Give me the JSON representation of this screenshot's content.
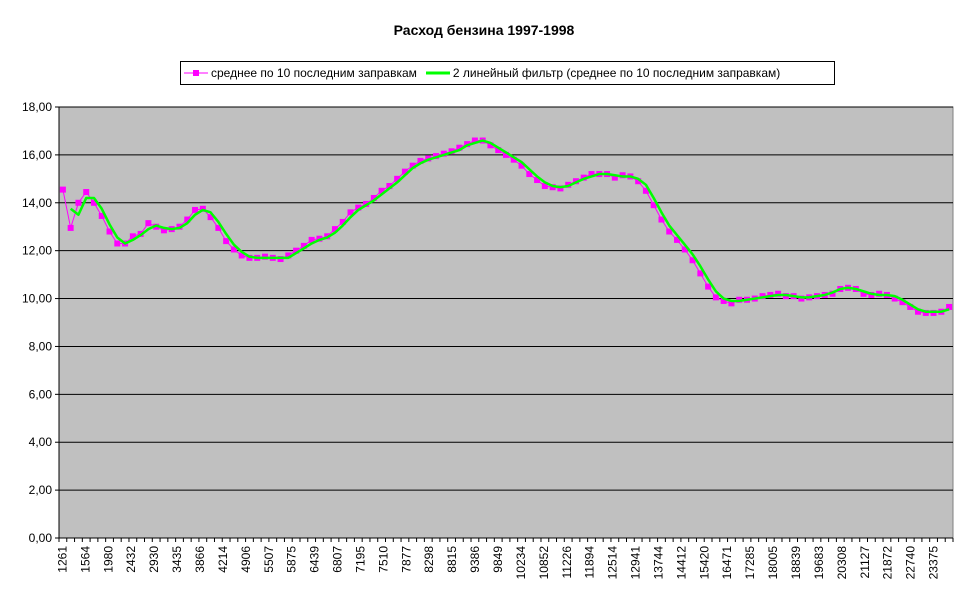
{
  "title": "Расход бензина 1997-1998",
  "legend": [
    {
      "label": "среднее по 10 последним заправкам",
      "color": "#FF00FF"
    },
    {
      "label": "2 линейный фильтр (среднее по 10 последним заправкам)",
      "color": "#00FF00"
    }
  ],
  "colors": {
    "plot_bg": "#C0C0C0",
    "grid": "#000000",
    "series1": "#FF00FF",
    "series2": "#00FF00"
  },
  "chart_data": {
    "type": "line",
    "title": "Расход бензина 1997-1998",
    "xlabel": "",
    "ylabel": "",
    "ylim": [
      0,
      18
    ],
    "yticks": [
      "0,00",
      "2,00",
      "4,00",
      "6,00",
      "8,00",
      "10,00",
      "12,00",
      "14,00",
      "16,00",
      "18,00"
    ],
    "xtick_labels": [
      "1261",
      "1564",
      "1980",
      "2432",
      "2930",
      "3435",
      "3866",
      "4214",
      "4906",
      "5507",
      "5875",
      "6439",
      "6807",
      "7195",
      "7510",
      "7877",
      "8298",
      "8815",
      "9386",
      "9849",
      "10234",
      "10852",
      "11226",
      "11894",
      "12514",
      "12941",
      "13744",
      "14412",
      "15420",
      "16471",
      "17285",
      "18005",
      "18839",
      "19683",
      "20308",
      "21127",
      "21872",
      "22740",
      "23375"
    ],
    "grid": true,
    "legend_position": "top",
    "series": [
      {
        "name": "среднее по 10 последним заправкам",
        "values": [
          14.55,
          12.95,
          14.0,
          14.45,
          14.0,
          13.45,
          12.8,
          12.3,
          12.3,
          12.6,
          12.7,
          13.15,
          13.0,
          12.85,
          12.9,
          13.0,
          13.3,
          13.7,
          13.75,
          13.4,
          12.95,
          12.4,
          12.05,
          11.8,
          11.7,
          11.7,
          11.75,
          11.7,
          11.65,
          11.8,
          12.0,
          12.2,
          12.45,
          12.5,
          12.6,
          12.9,
          13.2,
          13.6,
          13.8,
          13.95,
          14.2,
          14.5,
          14.7,
          15.0,
          15.3,
          15.55,
          15.75,
          15.85,
          15.95,
          16.05,
          16.15,
          16.3,
          16.45,
          16.6,
          16.6,
          16.4,
          16.2,
          16.0,
          15.8,
          15.55,
          15.2,
          14.95,
          14.7,
          14.65,
          14.6,
          14.75,
          14.9,
          15.05,
          15.2,
          15.2,
          15.2,
          15.05,
          15.15,
          15.1,
          14.9,
          14.5,
          13.9,
          13.3,
          12.8,
          12.45,
          12.05,
          11.6,
          11.05,
          10.5,
          10.05,
          9.9,
          9.8,
          9.95,
          9.95,
          10.0,
          10.1,
          10.15,
          10.2,
          10.1,
          10.1,
          10.0,
          10.05,
          10.1,
          10.15,
          10.2,
          10.4,
          10.45,
          10.4,
          10.2,
          10.15,
          10.2,
          10.15,
          10.0,
          9.85,
          9.65,
          9.45,
          9.4,
          9.4,
          9.45,
          9.65
        ]
      },
      {
        "name": "2 линейный фильтр (среднее по 10 последним заправкам)",
        "values": [
          null,
          13.75,
          13.5,
          14.2,
          14.2,
          13.75,
          13.1,
          12.55,
          12.3,
          12.45,
          12.65,
          12.9,
          13.05,
          12.95,
          12.9,
          12.95,
          13.15,
          13.5,
          13.7,
          13.6,
          13.2,
          12.7,
          12.25,
          11.95,
          11.75,
          11.7,
          11.7,
          11.7,
          11.7,
          11.7,
          11.9,
          12.1,
          12.3,
          12.45,
          12.55,
          12.75,
          13.05,
          13.4,
          13.7,
          13.9,
          14.1,
          14.35,
          14.6,
          14.85,
          15.15,
          15.45,
          15.65,
          15.8,
          15.9,
          16.0,
          16.1,
          16.2,
          16.4,
          16.5,
          16.6,
          16.5,
          16.3,
          16.1,
          15.9,
          15.7,
          15.4,
          15.1,
          14.85,
          14.7,
          14.65,
          14.7,
          14.85,
          15.0,
          15.1,
          15.2,
          15.2,
          15.15,
          15.1,
          15.1,
          15.0,
          14.75,
          14.2,
          13.6,
          13.05,
          12.65,
          12.25,
          11.85,
          11.35,
          10.8,
          10.3,
          10.0,
          9.9,
          9.9,
          9.95,
          10.0,
          10.05,
          10.1,
          10.15,
          10.15,
          10.1,
          10.05,
          10.05,
          10.1,
          10.15,
          10.25,
          10.4,
          10.45,
          10.4,
          10.3,
          10.2,
          10.15,
          10.15,
          10.1,
          9.95,
          9.75,
          9.55,
          9.45,
          9.45,
          9.45,
          9.55
        ]
      }
    ]
  }
}
